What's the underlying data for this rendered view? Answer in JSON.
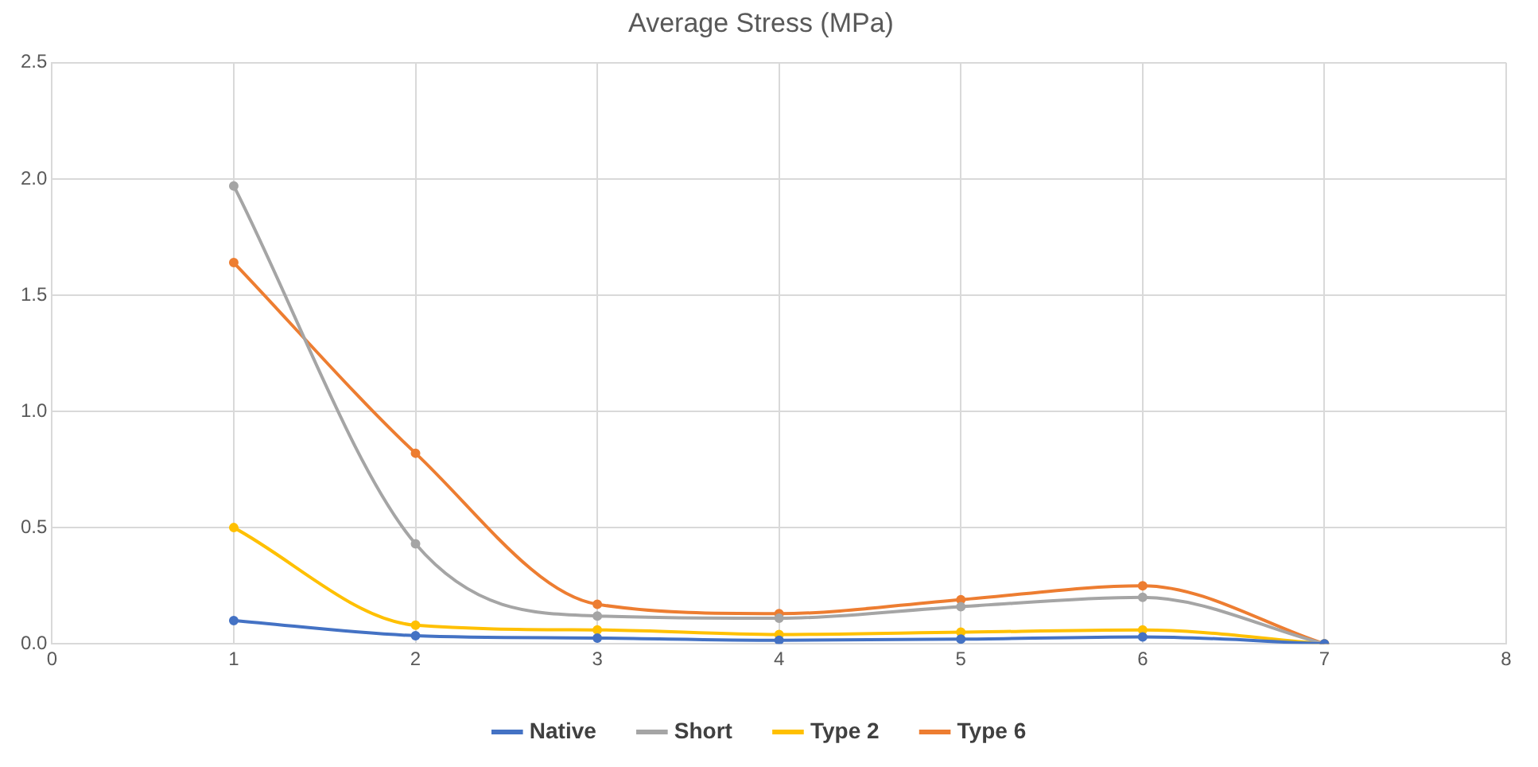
{
  "chart_data": {
    "type": "line",
    "title": "Average Stress (MPa)",
    "x": [
      1,
      2,
      3,
      4,
      5,
      6,
      7
    ],
    "series": [
      {
        "name": "Native",
        "color": "#4472c4",
        "values": [
          0.1,
          0.035,
          0.025,
          0.015,
          0.02,
          0.03,
          0.0
        ]
      },
      {
        "name": "Short",
        "color": "#a5a5a5",
        "values": [
          1.97,
          0.43,
          0.12,
          0.11,
          0.16,
          0.2,
          0.0
        ]
      },
      {
        "name": "Type 2",
        "color": "#ffc000",
        "values": [
          0.5,
          0.08,
          0.06,
          0.04,
          0.05,
          0.06,
          0.0
        ]
      },
      {
        "name": "Type 6",
        "color": "#ed7d31",
        "values": [
          1.64,
          0.82,
          0.17,
          0.13,
          0.19,
          0.25,
          0.0
        ]
      }
    ],
    "xlim": [
      0,
      8
    ],
    "xticks": [
      0,
      1,
      2,
      3,
      4,
      5,
      6,
      7,
      8
    ],
    "ylim": [
      0,
      2.5
    ],
    "yticks": [
      {
        "value": 0,
        "label": "0.0"
      },
      {
        "value": 0.5,
        "label": "0.5"
      },
      {
        "value": 1,
        "label": "1.0"
      },
      {
        "value": 1.5,
        "label": "1.5"
      },
      {
        "value": 2,
        "label": "2.0"
      },
      {
        "value": 2.5,
        "label": "2.5"
      }
    ],
    "grid": true,
    "legend": "bottom",
    "marker": "circle",
    "line_style": "solid"
  }
}
